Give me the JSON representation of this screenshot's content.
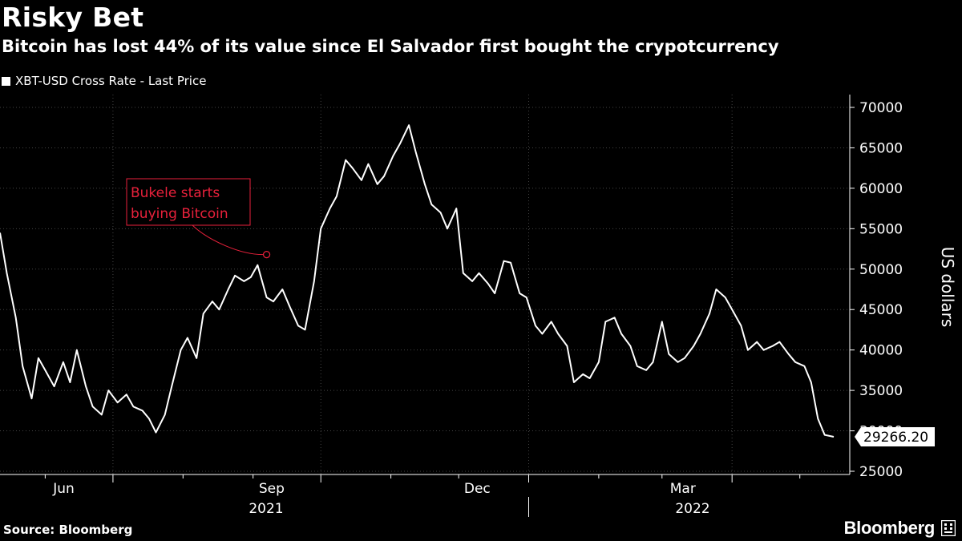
{
  "chart_data": {
    "type": "line",
    "title": "Risky Bet",
    "subtitle": "Bitcoin has lost 44% of its value since El Salvador first bought the crypotcurrency",
    "series": [
      {
        "name": "XBT-USD Cross Rate - Last Price",
        "color": "#ffffff"
      }
    ],
    "ylabel": "US dollars",
    "ylim": [
      24000,
      72000
    ],
    "yticks": [
      25000,
      30000,
      35000,
      40000,
      45000,
      50000,
      55000,
      60000,
      65000,
      70000
    ],
    "x_month_labels": [
      "Jun",
      "Sep",
      "Dec",
      "Mar"
    ],
    "x_year_labels": [
      "2021",
      "2022"
    ],
    "dates": [
      "2021-05-12",
      "2021-05-15",
      "2021-05-19",
      "2021-05-22",
      "2021-05-26",
      "2021-05-29",
      "2021-06-01",
      "2021-06-05",
      "2021-06-09",
      "2021-06-12",
      "2021-06-15",
      "2021-06-19",
      "2021-06-22",
      "2021-06-26",
      "2021-06-29",
      "2021-07-03",
      "2021-07-07",
      "2021-07-10",
      "2021-07-14",
      "2021-07-17",
      "2021-07-20",
      "2021-07-24",
      "2021-07-27",
      "2021-07-31",
      "2021-08-03",
      "2021-08-07",
      "2021-08-10",
      "2021-08-14",
      "2021-08-17",
      "2021-08-21",
      "2021-08-24",
      "2021-08-28",
      "2021-08-31",
      "2021-09-03",
      "2021-09-07",
      "2021-09-10",
      "2021-09-14",
      "2021-09-17",
      "2021-09-21",
      "2021-09-24",
      "2021-09-28",
      "2021-10-01",
      "2021-10-05",
      "2021-10-08",
      "2021-10-12",
      "2021-10-15",
      "2021-10-19",
      "2021-10-22",
      "2021-10-26",
      "2021-10-29",
      "2021-11-02",
      "2021-11-05",
      "2021-11-09",
      "2021-11-12",
      "2021-11-16",
      "2021-11-19",
      "2021-11-23",
      "2021-11-26",
      "2021-11-30",
      "2021-12-03",
      "2021-12-07",
      "2021-12-10",
      "2021-12-14",
      "2021-12-17",
      "2021-12-21",
      "2021-12-24",
      "2021-12-28",
      "2021-12-31",
      "2022-01-04",
      "2022-01-07",
      "2022-01-11",
      "2022-01-14",
      "2022-01-18",
      "2022-01-21",
      "2022-01-25",
      "2022-01-28",
      "2022-02-01",
      "2022-02-04",
      "2022-02-08",
      "2022-02-11",
      "2022-02-15",
      "2022-02-18",
      "2022-02-22",
      "2022-02-25",
      "2022-03-01",
      "2022-03-04",
      "2022-03-08",
      "2022-03-11",
      "2022-03-15",
      "2022-03-18",
      "2022-03-22",
      "2022-03-25",
      "2022-03-29",
      "2022-04-01",
      "2022-04-05",
      "2022-04-08",
      "2022-04-12",
      "2022-04-15",
      "2022-04-19",
      "2022-04-22",
      "2022-04-26",
      "2022-04-29",
      "2022-05-03",
      "2022-05-06",
      "2022-05-09",
      "2022-05-12",
      "2022-05-16"
    ],
    "values": [
      54500,
      49500,
      44000,
      38000,
      34000,
      39000,
      37500,
      35500,
      38500,
      36000,
      40000,
      35500,
      33000,
      32000,
      35000,
      33500,
      34500,
      33000,
      32500,
      31500,
      29800,
      32000,
      35500,
      40000,
      41500,
      39000,
      44500,
      46000,
      45000,
      47500,
      49200,
      48500,
      49000,
      50500,
      46500,
      46000,
      47500,
      45500,
      43000,
      42500,
      48500,
      55000,
      57500,
      59000,
      63500,
      62500,
      61000,
      63000,
      60500,
      61500,
      64000,
      65500,
      67800,
      64500,
      60500,
      58000,
      57000,
      55000,
      57500,
      49500,
      48500,
      49500,
      48200,
      47000,
      51000,
      50800,
      47000,
      46500,
      43000,
      42000,
      43500,
      42000,
      40500,
      36000,
      37000,
      36500,
      38500,
      43500,
      44000,
      42000,
      40500,
      38000,
      37500,
      38500,
      43500,
      39500,
      38500,
      39000,
      40500,
      42000,
      44500,
      47500,
      46500,
      45000,
      43000,
      40000,
      41000,
      40000,
      40500,
      41000,
      39500,
      38500,
      38000,
      36000,
      31500,
      29500,
      29266.2
    ],
    "last_value_label": "29266.20",
    "annotation": {
      "text_line1": "Bukele starts",
      "text_line2": "buying Bitcoin",
      "date": "2021-09-07",
      "value": 51800,
      "color": "#e8213b"
    }
  },
  "source": "Source: Bloomberg",
  "brand": "Bloomberg"
}
